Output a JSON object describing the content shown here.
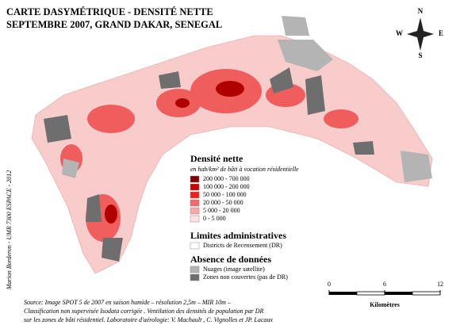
{
  "title": [
    "CARTE DASYMÉTRIQUE - DENSITÉ NETTE",
    "SEPTEMBRE 2007, GRAND DAKAR, SENEGAL"
  ],
  "compass": {
    "north": "N",
    "south": "S",
    "east": "E",
    "west": "W"
  },
  "credit": "Marion Borderon - UMR 7300 ESPACE - 2012",
  "legend": {
    "density_title": "Densité nette",
    "density_subtitle": "en hab/km² de bâti à vocation résidentielle",
    "classes": [
      {
        "label": "200 000 - 700 000",
        "color": "#7a0000"
      },
      {
        "label": "100 000 - 200 000",
        "color": "#c80000"
      },
      {
        "label": "50 000 - 100 000",
        "color": "#f01e1e"
      },
      {
        "label": "20 000 -   50 000",
        "color": "#f26a6a"
      },
      {
        "label": "5 000 -   20 000",
        "color": "#f7a8a8"
      },
      {
        "label": "0 -     5 000",
        "color": "#fde2e2"
      }
    ],
    "admin_title": "Limites administratives",
    "admin_items": [
      {
        "label": "Districts de Recensement (DR)",
        "color": "#ffffff"
      }
    ],
    "nodata_title": "Absence de données",
    "nodata_items": [
      {
        "label": "Nuages (image satellite)",
        "color": "#b4b4b4"
      },
      {
        "label": "Zones non couvertes (pas de DR)",
        "color": "#6e6e6e"
      }
    ]
  },
  "scale": {
    "ticks": [
      0,
      6,
      12
    ],
    "unit": "Kilomètres"
  },
  "source": [
    "Source: Image SPOT 5 de 2007 en saison humide – résolution 2,5m – MIR 10m –",
    "Classification non supervisée Isodata corrigée . Ventilation des densités de population par DR",
    "sur les zones de bâti résidentiel. Laboratoire d'aérologie: V. Machault , C. Vignolles et JP. Lacaux"
  ]
}
